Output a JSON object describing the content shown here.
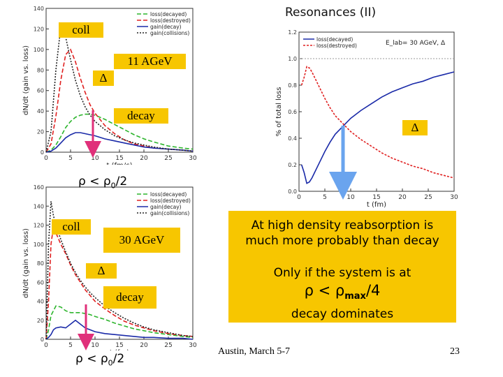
{
  "slide": {
    "title": "Resonances (II)",
    "footer": "Austin, March 5-7",
    "page_number": "23",
    "message_line1": "At high density reabsorption is",
    "message_line2": "much more probably than decay",
    "message_line3": "Only if the system  is at",
    "message_line4_prefix": "ρ < ρ",
    "message_line4_sub": "max",
    "message_line4_suffix": "/4",
    "message_line5": "decay dominates"
  },
  "labels": {
    "coll_top": "coll",
    "agev_top": "11 AGeV",
    "delta_top": "Δ",
    "decay_top": "decay",
    "rho_top": "ρ < ρ",
    "rho_top_sub": "0",
    "rho_top_suffix": "/2",
    "delta_right": "Δ",
    "coll_bottom": "coll",
    "agev_bottom": "30 AGeV",
    "delta_bottom": "Δ",
    "decay_bottom": "decay",
    "rho_bottom": "ρ < ρ",
    "rho_bottom_sub": "0",
    "rho_bottom_suffix": "/2"
  },
  "colors": {
    "box": "#f7c600",
    "decayed": "#2db52d",
    "destroyed": "#e02020",
    "gain_decay": "#1a2aa8",
    "gain_collisions": "#222222",
    "arrow_pink": "#e0307a",
    "arrow_blue": "#6aa4ee"
  },
  "chart_data": [
    {
      "type": "line",
      "ylabel": "dN/dt (gain vs. loss)",
      "xlabel": "t (fm/c)",
      "xlim": [
        0,
        30
      ],
      "ylim": [
        0,
        140
      ],
      "xticks": [
        "0",
        "5",
        "10",
        "15",
        "20",
        "25",
        "30"
      ],
      "yticks": [
        "0",
        "20",
        "40",
        "60",
        "80",
        "100",
        "120",
        "140"
      ],
      "legend": [
        "loss(decayed)",
        "loss(destroyed)",
        "gain(decay)",
        "gain(collisions)"
      ],
      "legend_position": "top-right",
      "series": [
        {
          "name": "loss(decayed)",
          "x": [
            0,
            1,
            2,
            3,
            4,
            5,
            6,
            7,
            8,
            9,
            10,
            12,
            14,
            16,
            18,
            20,
            22,
            25,
            28,
            30
          ],
          "values": [
            0,
            2,
            7,
            15,
            24,
            30,
            34,
            36,
            37,
            37,
            36,
            32,
            27,
            22,
            17,
            13,
            10,
            6,
            4,
            3
          ]
        },
        {
          "name": "loss(destroyed)",
          "x": [
            0,
            1,
            2,
            3,
            4,
            5,
            6,
            7,
            8,
            9,
            10,
            12,
            14,
            16,
            18,
            20,
            22,
            25,
            28,
            30
          ],
          "values": [
            0,
            8,
            35,
            70,
            95,
            100,
            88,
            72,
            58,
            46,
            38,
            26,
            18,
            12,
            8,
            6,
            4,
            3,
            2,
            1
          ]
        },
        {
          "name": "gain(decay)",
          "x": [
            0,
            1,
            2,
            3,
            4,
            5,
            6,
            7,
            8,
            9,
            10,
            12,
            14,
            16,
            18,
            20,
            22,
            25,
            28,
            30
          ],
          "values": [
            0,
            1,
            4,
            9,
            14,
            17,
            19,
            19,
            18,
            17,
            16,
            13,
            11,
            9,
            7,
            5,
            4,
            3,
            2,
            1
          ]
        },
        {
          "name": "gain(collisions)",
          "x": [
            0,
            1,
            2,
            3,
            4,
            5,
            6,
            7,
            8,
            9,
            10,
            12,
            14,
            16,
            18,
            20,
            22,
            25,
            28,
            30
          ],
          "values": [
            0,
            20,
            80,
            122,
            112,
            90,
            70,
            55,
            44,
            36,
            30,
            22,
            16,
            12,
            9,
            7,
            5,
            3,
            2,
            1
          ]
        }
      ]
    },
    {
      "type": "line",
      "ylabel": "% of total loss",
      "xlabel": "t (fm)",
      "annotation": "E_lab= 30 AGeV, Δ",
      "xlim": [
        0,
        30
      ],
      "ylim": [
        0,
        1.2
      ],
      "xticks": [
        "0",
        "5",
        "10",
        "15",
        "20",
        "25",
        "30"
      ],
      "yticks": [
        "0.0",
        "0.2",
        "0.4",
        "0.6",
        "0.8",
        "1.0",
        "1.2"
      ],
      "legend": [
        "loss(decayed)",
        "loss(destroyed)"
      ],
      "legend_position": "top-left",
      "series": [
        {
          "name": "loss(decayed)",
          "x": [
            0.5,
            1,
            1.5,
            2,
            2.5,
            3,
            4,
            5,
            6,
            7,
            8,
            9,
            10,
            12,
            14,
            16,
            18,
            20,
            22,
            24,
            26,
            28,
            30
          ],
          "values": [
            0.2,
            0.14,
            0.06,
            0.07,
            0.1,
            0.14,
            0.22,
            0.3,
            0.37,
            0.43,
            0.47,
            0.51,
            0.55,
            0.61,
            0.66,
            0.71,
            0.75,
            0.78,
            0.81,
            0.83,
            0.86,
            0.88,
            0.9
          ]
        },
        {
          "name": "loss(destroyed)",
          "x": [
            0.5,
            1,
            1.5,
            2,
            2.5,
            3,
            4,
            5,
            6,
            7,
            8,
            9,
            10,
            12,
            14,
            16,
            18,
            20,
            22,
            24,
            26,
            28,
            30
          ],
          "values": [
            0.8,
            0.86,
            0.94,
            0.93,
            0.9,
            0.86,
            0.78,
            0.7,
            0.63,
            0.57,
            0.53,
            0.49,
            0.45,
            0.39,
            0.34,
            0.29,
            0.25,
            0.22,
            0.19,
            0.17,
            0.14,
            0.12,
            0.1
          ]
        }
      ]
    },
    {
      "type": "line",
      "ylabel": "dN/dt (gain vs. loss)",
      "xlabel": "t (fm)",
      "xlim": [
        0,
        30
      ],
      "ylim": [
        0,
        160
      ],
      "xticks": [
        "0",
        "5",
        "10",
        "15",
        "20",
        "25",
        "30"
      ],
      "yticks": [
        "0",
        "20",
        "40",
        "60",
        "80",
        "100",
        "120",
        "140",
        "160"
      ],
      "legend": [
        "loss(decayed)",
        "loss(destroyed)",
        "gain(decay)",
        "gain(collisions)"
      ],
      "legend_position": "top-right",
      "series": [
        {
          "name": "loss(decayed)",
          "x": [
            0,
            0.5,
            1,
            1.5,
            2,
            3,
            4,
            5,
            6,
            7,
            8,
            9,
            10,
            12,
            14,
            16,
            18,
            20,
            22,
            25,
            28,
            30
          ],
          "values": [
            0,
            10,
            25,
            30,
            35,
            34,
            30,
            28,
            28,
            28,
            27,
            26,
            24,
            21,
            17,
            14,
            11,
            9,
            7,
            5,
            3,
            2
          ]
        },
        {
          "name": "loss(destroyed)",
          "x": [
            0,
            0.5,
            1,
            1.5,
            2,
            3,
            4,
            5,
            6,
            7,
            8,
            9,
            10,
            12,
            14,
            16,
            18,
            20,
            22,
            25,
            28,
            30
          ],
          "values": [
            0,
            40,
            100,
            118,
            112,
            100,
            90,
            78,
            68,
            60,
            52,
            46,
            40,
            32,
            25,
            19,
            15,
            12,
            9,
            6,
            4,
            3
          ]
        },
        {
          "name": "gain(decay)",
          "x": [
            0,
            0.5,
            1,
            1.5,
            2,
            3,
            4,
            5,
            6,
            7,
            8,
            9,
            10,
            12,
            14,
            16,
            18,
            20,
            22,
            25,
            28,
            30
          ],
          "values": [
            0,
            2,
            5,
            10,
            12,
            13,
            12,
            16,
            20,
            16,
            12,
            10,
            8,
            6,
            5,
            4,
            3,
            2,
            2,
            1,
            1,
            0
          ]
        },
        {
          "name": "gain(collisions)",
          "x": [
            0,
            0.5,
            1,
            1.5,
            2,
            3,
            4,
            5,
            6,
            7,
            8,
            9,
            10,
            12,
            14,
            16,
            18,
            20,
            22,
            25,
            28,
            30
          ],
          "values": [
            0,
            100,
            145,
            130,
            120,
            105,
            92,
            80,
            70,
            62,
            55,
            49,
            44,
            35,
            28,
            22,
            17,
            13,
            10,
            7,
            4,
            3
          ]
        }
      ]
    }
  ]
}
